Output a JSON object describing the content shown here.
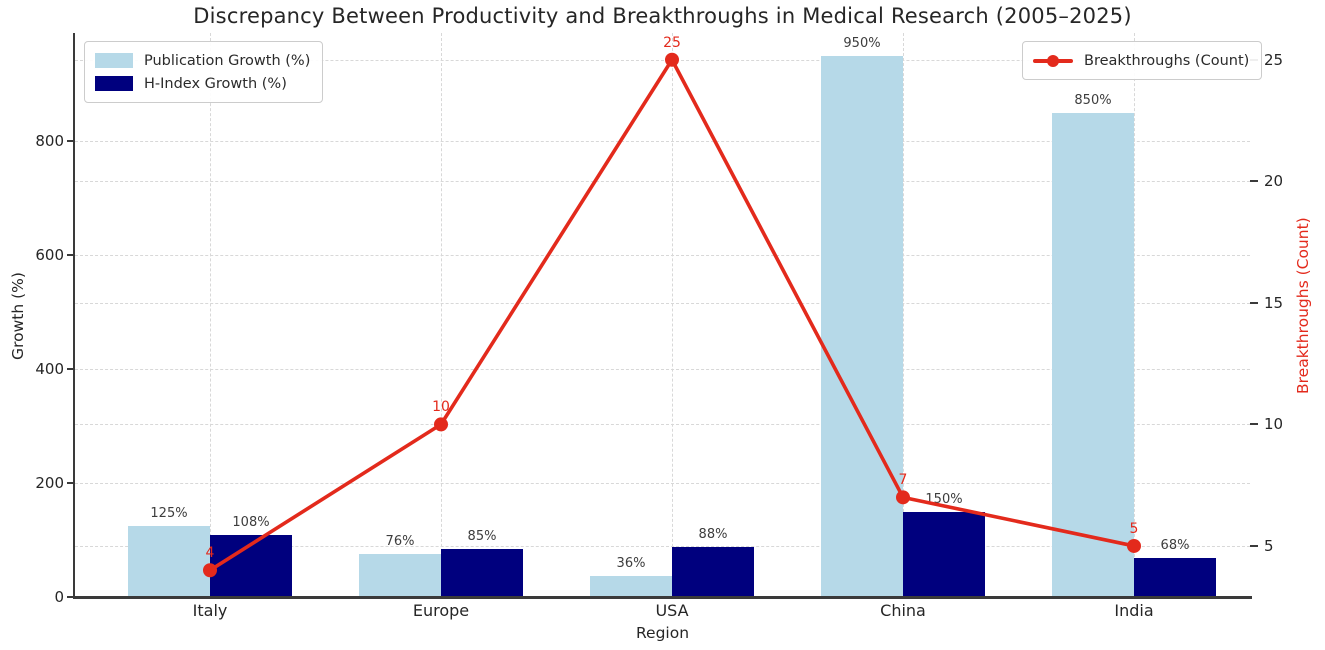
{
  "chart_data": {
    "type": "bar+line",
    "title": "Discrepancy Between Productivity and Breakthroughs in Medical Research (2005–2025)",
    "xlabel": "Region",
    "ylabel_left": "Growth (%)",
    "ylabel_right": "Breakthroughs (Count)",
    "categories": [
      "Italy",
      "Europe",
      "USA",
      "China",
      "India"
    ],
    "series": [
      {
        "name": "Publication Growth (%)",
        "values": [
          125,
          76,
          36,
          950,
          850
        ],
        "color": "#b6d9e8",
        "label_suffix": "%"
      },
      {
        "name": "H-Index Growth (%)",
        "values": [
          108,
          85,
          88,
          150,
          68
        ],
        "color": "#00007e",
        "label_suffix": "%"
      }
    ],
    "line_series": {
      "name": "Breakthroughs (Count)",
      "values": [
        4,
        10,
        25,
        7,
        5
      ],
      "color": "#e32a1c"
    },
    "axes": {
      "left_ticks": [
        0,
        200,
        400,
        600,
        800
      ],
      "left_range": [
        0,
        990
      ],
      "right_ticks": [
        5,
        10,
        15,
        20,
        25
      ],
      "right_range": [
        2.9,
        26.1
      ],
      "grid": "dashed",
      "legend_left_position": "upper left",
      "legend_right_position": "upper right"
    },
    "colors": {
      "bar_label": "#3d3d3d",
      "grid": "#d8d8d8",
      "spine": "#3a3a3a",
      "right_axis_title": "#e32a1c"
    }
  }
}
